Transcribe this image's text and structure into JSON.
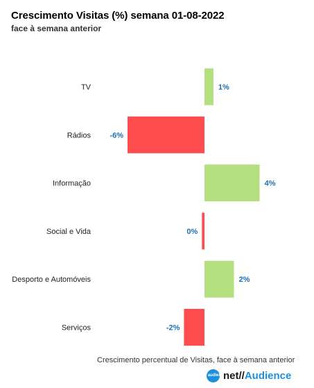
{
  "chart_data": {
    "type": "bar",
    "orientation": "horizontal",
    "title": "Crescimento Visitas (%) semana 01-08-2022",
    "subtitle": "face à semana anterior",
    "xlabel": "Crescimento percentual de Visitas, face à semana anterior",
    "categories": [
      "TV",
      "Rádios",
      "Informação",
      "Social e Vida",
      "Desporto e Automóveis",
      "Serviços"
    ],
    "values": [
      0.7,
      -6.0,
      4.3,
      -0.2,
      2.3,
      -1.6
    ],
    "value_labels": [
      "1%",
      "-6%",
      "4%",
      "0%",
      "2%",
      "-2%"
    ],
    "xlim": [
      -16,
      8
    ],
    "grid": false,
    "legend": "none",
    "colors": {
      "positive": "#b3df7f",
      "negative": "#ff4d4f",
      "value_label": "#1f6fb4"
    }
  },
  "brand": {
    "badge": "net audience",
    "net": "net",
    "slash": "//",
    "audience": "Audience"
  }
}
